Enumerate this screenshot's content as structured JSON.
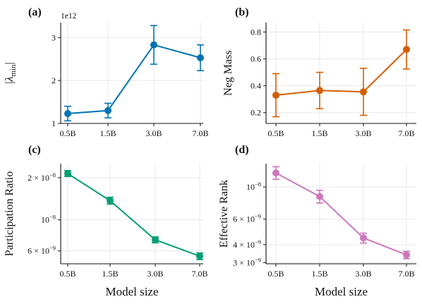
{
  "chart_data": [
    {
      "id": "a",
      "type": "line",
      "panel_label": "(a)",
      "ylabel": "|λmin|",
      "ylabel_parts": {
        "open": "|",
        "main": "λ",
        "sub": "min",
        "close": "|"
      },
      "sci_note": "1e12",
      "categories": [
        "0.5B",
        "1.5B",
        "3.0B",
        "7.0B"
      ],
      "series": [
        {
          "values": [
            1.23,
            1.3,
            2.83,
            2.53
          ],
          "err": [
            0.17,
            0.17,
            0.45,
            0.3
          ],
          "color": "#0173b2"
        }
      ],
      "yscale": "linear",
      "ylim": [
        1.0,
        3.35
      ],
      "yticks": [
        1,
        2,
        3
      ],
      "ytick_labels": [
        "1",
        "2",
        "3"
      ],
      "grid": true
    },
    {
      "id": "b",
      "type": "line",
      "panel_label": "(b)",
      "ylabel": "Neg Mass",
      "categories": [
        "0.5B",
        "1.5B",
        "3.0B",
        "7.0B"
      ],
      "series": [
        {
          "values": [
            0.33,
            0.365,
            0.355,
            0.67
          ],
          "err": [
            0.16,
            0.135,
            0.175,
            0.145
          ],
          "color": "#d55e00"
        }
      ],
      "yscale": "linear",
      "ylim": [
        0.12,
        0.87
      ],
      "yticks": [
        0.2,
        0.4,
        0.6,
        0.8
      ],
      "ytick_labels": [
        "0.2",
        "0.4",
        "0.6",
        "0.8"
      ],
      "grid": true
    },
    {
      "id": "c",
      "type": "line",
      "panel_label": "(c)",
      "ylabel": "Participation Ratio",
      "xlabel": "Model size",
      "categories": [
        "0.5B",
        "1.5B",
        "3.0B",
        "7.0B"
      ],
      "series": [
        {
          "values": [
            2.14e-08,
            1.37e-08,
            7.2e-09,
            5.5e-09
          ],
          "err_lo": [
            1e-09,
            7.5e-10,
            3.5e-10,
            3e-10
          ],
          "err_hi": [
            1.1e-09,
            8e-10,
            3.5e-10,
            3e-10
          ],
          "color": "#029e73"
        }
      ],
      "yscale": "log",
      "ylim": [
        4.85e-09,
        2.52e-08
      ],
      "yticks": [
        2e-08,
        1e-08,
        6e-09
      ],
      "ytick_labels": [
        {
          "mant": "2 × 10",
          "exp": "−8"
        },
        {
          "mant": "10",
          "exp": "−8"
        },
        {
          "mant": "6 × 10",
          "exp": "−9"
        }
      ],
      "grid": true
    },
    {
      "id": "d",
      "type": "line",
      "panel_label": "(d)",
      "ylabel": "Effective Rank",
      "xlabel": "Model size",
      "categories": [
        "0.5B",
        "1.5B",
        "3.0B",
        "7.0B"
      ],
      "series": [
        {
          "values": [
            1.25e-08,
            8.6e-09,
            4.45e-09,
            3.4e-09
          ],
          "err_lo": [
            1.2e-09,
            8.5e-10,
            3.5e-10,
            2e-10
          ],
          "err_hi": [
            1.3e-09,
            9e-10,
            3.5e-10,
            2e-10
          ],
          "color": "#cc78bc"
        }
      ],
      "yscale": "log",
      "ylim": [
        2.95e-09,
        1.45e-08
      ],
      "yticks": [
        1e-08,
        6e-09,
        4e-09,
        3e-09
      ],
      "ytick_labels": [
        {
          "mant": "10",
          "exp": "−8"
        },
        {
          "mant": "6 × 10",
          "exp": "−9"
        },
        {
          "mant": "4 × 10",
          "exp": "−9"
        },
        {
          "mant": "3 × 10",
          "exp": "−9"
        }
      ],
      "grid": true
    }
  ]
}
